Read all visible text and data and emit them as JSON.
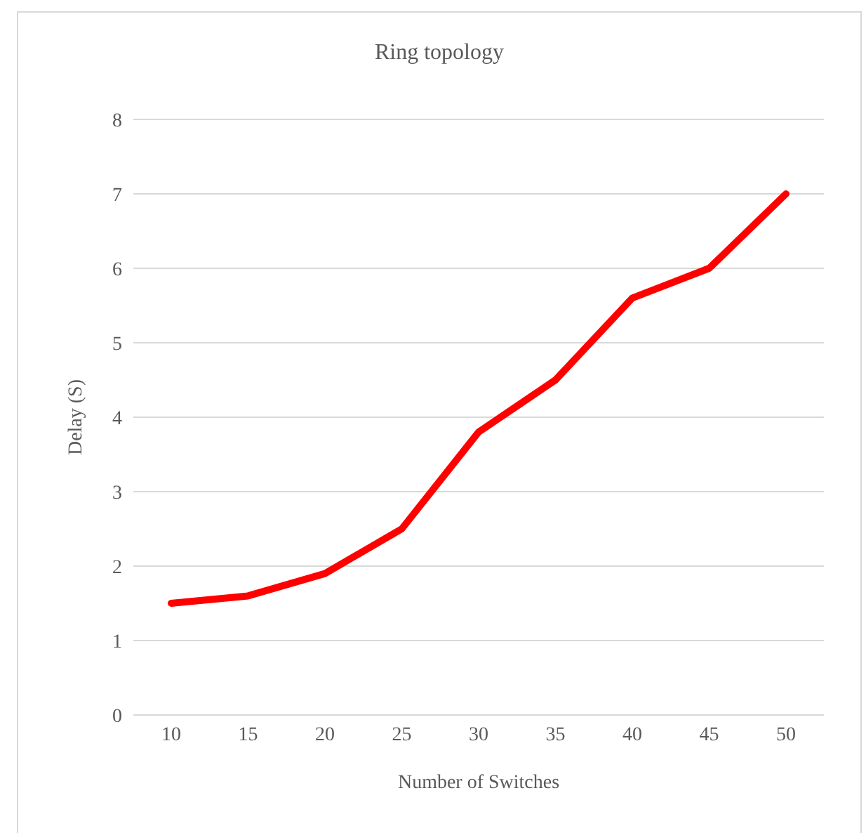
{
  "chart_data": {
    "type": "line",
    "title": "Ring topology",
    "xlabel": "Number of Switches",
    "ylabel": "Delay (S)",
    "categories": [
      "10",
      "15",
      "20",
      "25",
      "30",
      "35",
      "40",
      "45",
      "50"
    ],
    "series": [
      {
        "color": "#ff0000",
        "values": [
          1.5,
          1.6,
          1.9,
          2.5,
          3.8,
          4.5,
          5.6,
          6.0,
          7.0
        ]
      }
    ],
    "ylim": [
      0,
      8
    ],
    "yticks": [
      0,
      1,
      2,
      3,
      4,
      5,
      6,
      7,
      8
    ],
    "grid": "y",
    "legend": false,
    "marker": "none",
    "line_style": "solid"
  }
}
